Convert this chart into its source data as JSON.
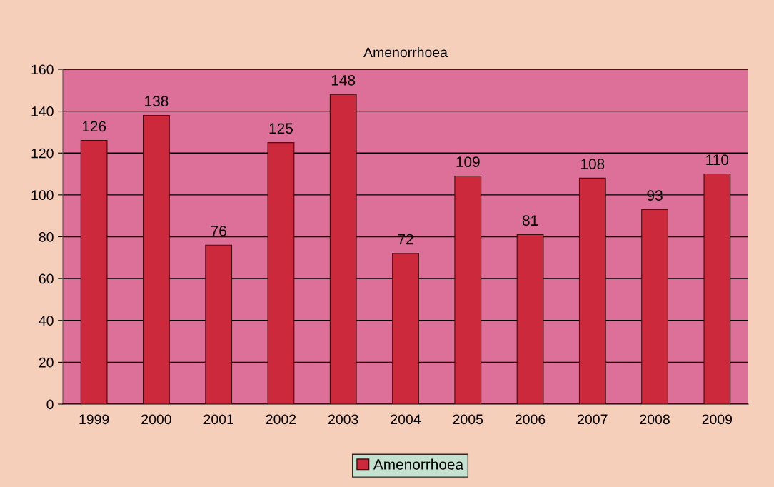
{
  "chart_data": {
    "type": "bar",
    "title": "Amenorrhoea",
    "categories": [
      "1999",
      "2000",
      "2001",
      "2002",
      "2003",
      "2004",
      "2005",
      "2006",
      "2007",
      "2008",
      "2009"
    ],
    "series": [
      {
        "name": "Amenorrhoea",
        "color": "#cc2a3c",
        "values": [
          126,
          138,
          76,
          125,
          148,
          72,
          109,
          81,
          108,
          93,
          110
        ]
      }
    ],
    "ylim": [
      0,
      160
    ],
    "yticks": [
      0,
      20,
      40,
      60,
      80,
      100,
      120,
      140,
      160
    ],
    "grid": "y",
    "legend": "bottom",
    "data_labels": true
  }
}
